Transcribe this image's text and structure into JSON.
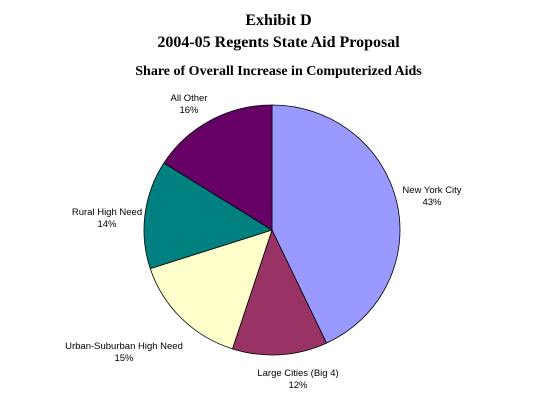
{
  "chart_data": {
    "type": "pie",
    "title_lines": [
      "Exhibit D",
      "2004-05 Regents State Aid Proposal"
    ],
    "subtitle": "Share of Overall Increase in Computerized Aids",
    "slices": [
      {
        "label": "New York City",
        "value": 43,
        "display": "43%",
        "color": "#9999FF"
      },
      {
        "label": "Large Cities (Big 4)",
        "value": 12,
        "display": "12%",
        "color": "#993366"
      },
      {
        "label": "Urban-Suburban High Need",
        "value": 15,
        "display": "15%",
        "color": "#FFFFCC"
      },
      {
        "label": "Rural High Need",
        "value": 14,
        "display": "14%",
        "color": "#008080"
      },
      {
        "label": "All Other",
        "value": 16,
        "display": "16%",
        "color": "#660066"
      }
    ],
    "start_angle_deg": 0,
    "direction": "clockwise",
    "legend": "none"
  }
}
